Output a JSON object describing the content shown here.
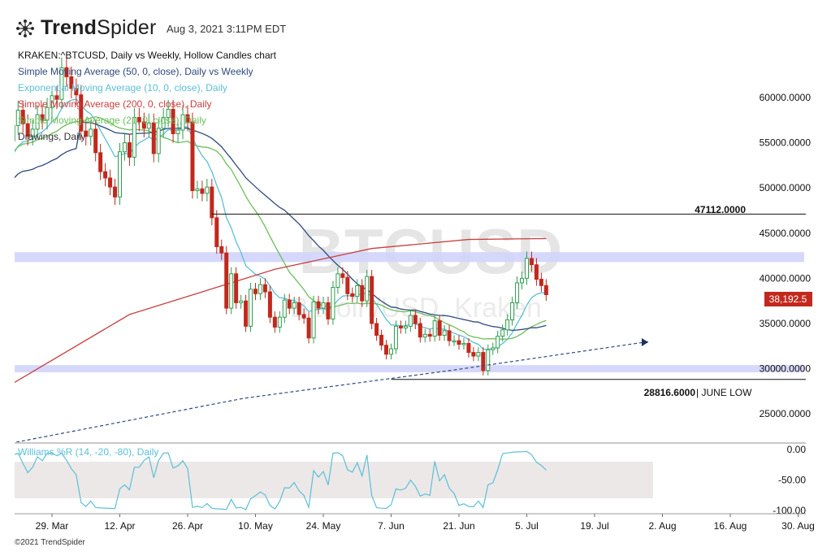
{
  "app": {
    "logo_text_bold": "Trend",
    "logo_text_light": "Spider",
    "timestamp": "Aug 3, 2021 3:11PM EDT",
    "copyright": "©2021 TrendSpider"
  },
  "watermark": {
    "symbol": "BTCUSD",
    "name": "Bitcoin/USD, Kraken"
  },
  "legend": [
    {
      "label": "KRAKEN:^BTCUSD, Daily vs Weekly, Hollow Candles chart",
      "color": "#111111"
    },
    {
      "label": "Simple Moving Average (50, 0, close), Daily vs Weekly",
      "color": "#2e4a7d"
    },
    {
      "label": "Exponential Moving Average (10, 0, close), Daily",
      "color": "#5bbfd6"
    },
    {
      "label": "Simple Moving Average (200, 0, close), Daily",
      "color": "#c94040"
    },
    {
      "label": "Simple Moving Average (21, 0, close), Daily",
      "color": "#6cbf5a"
    },
    {
      "label": "Drawings, Daily",
      "color": "#333333"
    }
  ],
  "annotations": {
    "resistance_label": "47112.0000",
    "support_value": "28816.6000",
    "support_label": "| JUNE LOW",
    "last_price": "38,192.5"
  },
  "williams_label": "Williams %R (14, -20, -80), Daily",
  "chart_data": {
    "type": "candlestick",
    "x_axis_labels": [
      "29. Mar",
      "12. Apr",
      "26. Apr",
      "10. May",
      "24. May",
      "7. Jun",
      "21. Jun",
      "5. Jul",
      "19. Jul",
      "2. Aug",
      "16. Aug",
      "30. Aug"
    ],
    "y_axis_labels": [
      "60000.0000",
      "55000.0000",
      "50000.0000",
      "45000.0000",
      "40000.0000",
      "35000.0000",
      "30000.0000",
      "25000.0000"
    ],
    "y_ticks": [
      60000,
      55000,
      50000,
      45000,
      40000,
      35000,
      30000,
      25000
    ],
    "x_tick_days": [
      14,
      28,
      42,
      56,
      70,
      84,
      98,
      112,
      126,
      140,
      154,
      168
    ],
    "resistance_level": 47112,
    "support_level": 28816.6,
    "last_close": 38192.5,
    "zones": [
      [
        41800,
        42900
      ],
      [
        29600,
        30400
      ]
    ],
    "candles": [
      [
        47500,
        50500
      ],
      [
        50500,
        52600
      ],
      [
        52600,
        51400
      ],
      [
        51400,
        54300
      ],
      [
        54300,
        57000
      ],
      [
        57000,
        55200
      ],
      [
        55200,
        56900
      ],
      [
        56900,
        58600
      ],
      [
        58600,
        57100
      ],
      [
        57100,
        55700
      ],
      [
        55700,
        56500
      ],
      [
        56500,
        58100
      ],
      [
        58100,
        57500
      ],
      [
        57500,
        58900
      ],
      [
        58900,
        60200
      ],
      [
        60200,
        59800
      ],
      [
        59800,
        63300
      ],
      [
        63300,
        62300
      ],
      [
        62300,
        61000
      ],
      [
        61000,
        60300
      ],
      [
        60300,
        56300
      ],
      [
        56300,
        55700
      ],
      [
        55700,
        56500
      ],
      [
        56500,
        53900
      ],
      [
        53900,
        51800
      ],
      [
        51800,
        51100
      ],
      [
        51100,
        50100
      ],
      [
        50100,
        49000
      ],
      [
        49000,
        54000
      ],
      [
        54000,
        55000
      ],
      [
        55000,
        53400
      ],
      [
        53400,
        57800
      ],
      [
        57800,
        57300
      ],
      [
        57300,
        56600
      ],
      [
        56600,
        57200
      ],
      [
        57200,
        53800
      ],
      [
        53800,
        56600
      ],
      [
        56600,
        57800
      ],
      [
        57800,
        58700
      ],
      [
        58700,
        56000
      ],
      [
        56000,
        56400
      ],
      [
        56400,
        58100
      ],
      [
        58100,
        57300
      ],
      [
        57300,
        49700
      ],
      [
        49700,
        49900
      ],
      [
        49900,
        49400
      ],
      [
        49400,
        50100
      ],
      [
        50100,
        46700
      ],
      [
        46700,
        43500
      ],
      [
        43500,
        42800
      ],
      [
        42800,
        36700
      ],
      [
        36700,
        40500
      ],
      [
        40500,
        37300
      ],
      [
        37300,
        37500
      ],
      [
        37500,
        34700
      ],
      [
        34700,
        38800
      ],
      [
        38800,
        38300
      ],
      [
        38300,
        39300
      ],
      [
        39300,
        38500
      ],
      [
        38500,
        35700
      ],
      [
        35700,
        34600
      ],
      [
        34600,
        35700
      ],
      [
        35700,
        37600
      ],
      [
        37600,
        36700
      ],
      [
        36700,
        37300
      ],
      [
        37300,
        36000
      ],
      [
        36000,
        35600
      ],
      [
        35600,
        33400
      ],
      [
        33400,
        37400
      ],
      [
        37400,
        36700
      ],
      [
        36700,
        37300
      ],
      [
        37300,
        35500
      ],
      [
        35500,
        39000
      ],
      [
        39000,
        40500
      ],
      [
        40500,
        40100
      ],
      [
        40100,
        38300
      ],
      [
        38300,
        38000
      ],
      [
        38000,
        39200
      ],
      [
        39200,
        37500
      ],
      [
        37500,
        40200
      ],
      [
        40200,
        35000
      ],
      [
        35000,
        33700
      ],
      [
        33700,
        32600
      ],
      [
        32600,
        31600
      ],
      [
        31600,
        32200
      ],
      [
        32200,
        34700
      ],
      [
        34700,
        34500
      ],
      [
        34500,
        34700
      ],
      [
        34700,
        35900
      ],
      [
        35900,
        35000
      ],
      [
        35000,
        33500
      ],
      [
        33500,
        33800
      ],
      [
        33800,
        33600
      ],
      [
        33600,
        35300
      ],
      [
        35300,
        33700
      ],
      [
        33700,
        34200
      ],
      [
        34200,
        33100
      ],
      [
        33100,
        33100
      ],
      [
        33100,
        32700
      ],
      [
        32700,
        32800
      ],
      [
        32800,
        31800
      ],
      [
        31800,
        31400
      ],
      [
        31400,
        31800
      ],
      [
        31800,
        29800
      ],
      [
        29800,
        32100
      ],
      [
        32100,
        32300
      ],
      [
        32300,
        33600
      ],
      [
        33600,
        34300
      ],
      [
        34300,
        35400
      ],
      [
        35400,
        37300
      ],
      [
        37300,
        39500
      ],
      [
        39500,
        40000
      ],
      [
        40000,
        42200
      ],
      [
        42200,
        41500
      ],
      [
        41500,
        39900
      ],
      [
        39900,
        39200
      ],
      [
        39200,
        38192.5
      ]
    ],
    "start_date": "2021-03-15"
  }
}
